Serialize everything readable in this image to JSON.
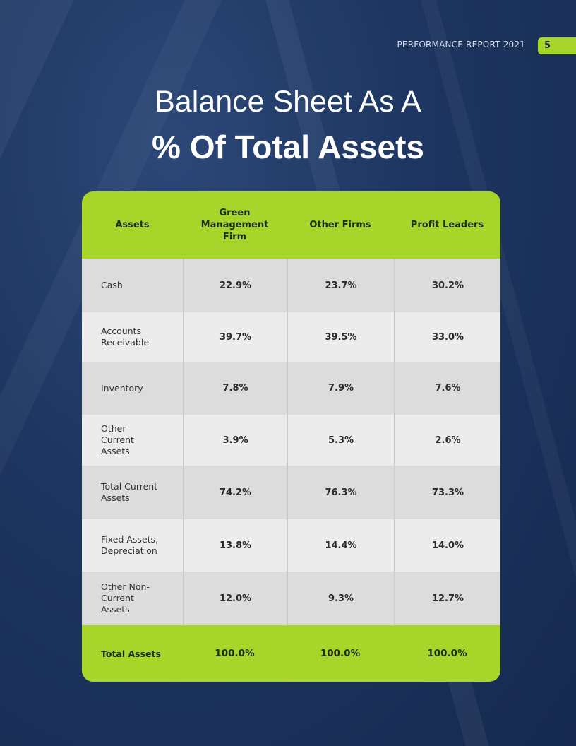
{
  "header": {
    "report_label": "PERFORMANCE REPORT 2021",
    "page_number": "5"
  },
  "title": {
    "line1": "Balance Sheet As A",
    "line2": "% Of Total Assets"
  },
  "table": {
    "columns": [
      "Assets",
      "Green Management Firm",
      "Other Firms",
      "Profit Leaders"
    ],
    "rows": [
      {
        "label": "Cash",
        "values": [
          "22.9%",
          "23.7%",
          "30.2%"
        ]
      },
      {
        "label": "Accounts Receivable",
        "values": [
          "39.7%",
          "39.5%",
          "33.0%"
        ]
      },
      {
        "label": "Inventory",
        "values": [
          "7.8%",
          "7.9%",
          "7.6%"
        ]
      },
      {
        "label": "Other Current Assets",
        "values": [
          "3.9%",
          "5.3%",
          "2.6%"
        ]
      },
      {
        "label": "Total Current Assets",
        "values": [
          "74.2%",
          "76.3%",
          "73.3%"
        ]
      },
      {
        "label": "Fixed Assets, Depreciation",
        "values": [
          "13.8%",
          "14.4%",
          "14.0%"
        ]
      },
      {
        "label": "Other Non-Current Assets",
        "values": [
          "12.0%",
          "9.3%",
          "12.7%"
        ]
      }
    ],
    "footer": {
      "label": "Total Assets",
      "values": [
        "100.0%",
        "100.0%",
        "100.0%"
      ]
    }
  },
  "colors": {
    "accent": "#a8d52a",
    "background": "#1d3560"
  }
}
